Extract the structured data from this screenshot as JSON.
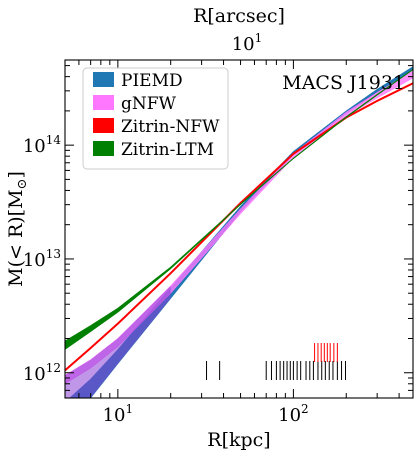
{
  "chart_data": {
    "type": "line",
    "title": "MACS J1931",
    "xlabel": "R[kpc]",
    "x2label": "R[arcsec]",
    "ylabel_main": "M(< R)[M",
    "ylabel_sun": "⊙",
    "ylabel_close": "]",
    "xscale": "log",
    "yscale": "log",
    "xlim": [
      5.0,
      480.0
    ],
    "ylim": [
      600000000000.0,
      560000000000000.0
    ],
    "x_ticks": [
      {
        "value": 10,
        "mant": "10",
        "exp": "1"
      },
      {
        "value": 100,
        "mant": "10",
        "exp": "2"
      }
    ],
    "y_ticks": [
      {
        "value": 1000000000000.0,
        "mant": "10",
        "exp": "12"
      },
      {
        "value": 10000000000000.0,
        "mant": "10",
        "exp": "13"
      },
      {
        "value": 100000000000000.0,
        "mant": "10",
        "exp": "14"
      }
    ],
    "x2_ticks": [
      {
        "value": 10,
        "mant": "10",
        "exp": "1"
      }
    ],
    "x2_scale_kpc_per_arcsec": 5.3,
    "grid": false,
    "legend_position": "top-left",
    "series": [
      {
        "name": "PIEMD",
        "color": "#1f77b4",
        "kind": "band",
        "x": [
          5,
          7,
          10,
          20,
          50,
          100,
          200,
          300,
          480
        ],
        "y_low": [
          350000000000.0,
          600000000000.0,
          1200000000000.0,
          4500000000000.0,
          26000000000000.0,
          83000000000000.0,
          190000000000000.0,
          290000000000000.0,
          460000000000000.0
        ],
        "y_high": [
          550000000000.0,
          880000000000.0,
          1600000000000.0,
          5600000000000.0,
          29000000000000.0,
          88000000000000.0,
          200000000000000.0,
          310000000000000.0,
          490000000000000.0
        ]
      },
      {
        "name": "gNFW",
        "color": "#ff77ff",
        "kind": "band",
        "x": [
          5,
          7,
          10,
          20,
          50,
          100,
          200,
          300,
          480
        ],
        "y_low": [
          800000000000.0,
          1100000000000.0,
          1700000000000.0,
          5000000000000.0,
          25000000000000.0,
          78000000000000.0,
          180000000000000.0,
          260000000000000.0,
          390000000000000.0
        ],
        "y_high": [
          950000000000.0,
          1300000000000.0,
          2000000000000.0,
          5800000000000.0,
          27500000000000.0,
          84000000000000.0,
          195000000000000.0,
          290000000000000.0,
          450000000000000.0
        ]
      },
      {
        "name": "Zitrin-NFW",
        "color": "#ff0000",
        "kind": "line",
        "x": [
          5,
          7,
          10,
          20,
          50,
          100,
          200,
          300,
          480
        ],
        "y": [
          1050000000000.0,
          1650000000000.0,
          2700000000000.0,
          7500000000000.0,
          31000000000000.0,
          84000000000000.0,
          175000000000000.0,
          245000000000000.0,
          350000000000000.0
        ]
      },
      {
        "name": "Zitrin-LTM",
        "color": "#008000",
        "kind": "band",
        "x": [
          5,
          7,
          10,
          20,
          50,
          100,
          200,
          300,
          480
        ],
        "y_low": [
          1600000000000.0,
          2300000000000.0,
          3400000000000.0,
          8200000000000.0,
          30000000000000.0,
          76000000000000.0,
          175000000000000.0,
          275000000000000.0,
          460000000000000.0
        ],
        "y_high": [
          1900000000000.0,
          2600000000000.0,
          3700000000000.0,
          8500000000000.0,
          30500000000000.0,
          77000000000000.0,
          178000000000000.0,
          280000000000000.0,
          465000000000000.0
        ]
      }
    ],
    "rug_black": [
      32,
      38,
      70,
      75,
      80,
      84,
      88,
      92,
      96,
      100,
      105,
      110,
      118,
      124,
      130,
      138,
      145,
      152,
      160,
      168,
      178,
      188,
      198
    ],
    "rug_red": [
      132,
      138,
      144,
      150,
      156,
      162,
      170,
      178
    ]
  }
}
